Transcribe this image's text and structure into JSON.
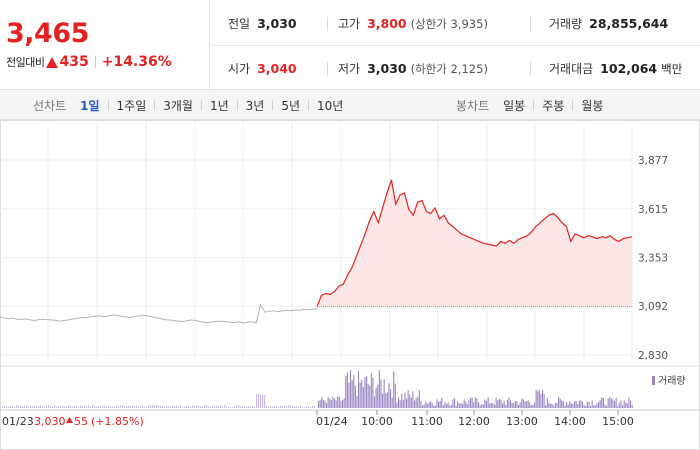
{
  "quote": {
    "price": "3,465",
    "change_label": "전일대비",
    "change_value": "435",
    "change_percent": "+14.36%",
    "prev_close_label": "전일",
    "prev_close": "3,030",
    "high_label": "고가",
    "high": "3,800",
    "upper_limit": "(상한가 3,935)",
    "volume_label": "거래량",
    "volume": "28,855,644",
    "open_label": "시가",
    "open": "3,040",
    "low_label": "저가",
    "low": "3,030",
    "lower_limit": "(하한가 2,125)",
    "trade_value_label": "거래대금",
    "trade_value": "102,064",
    "trade_value_unit": "백만"
  },
  "tabs": {
    "line_title": "선차트",
    "line_tabs": [
      "1일",
      "1주일",
      "3개월",
      "1년",
      "3년",
      "5년",
      "10년"
    ],
    "line_active": 0,
    "candle_title": "봉차트",
    "candle_tabs": [
      "일봉",
      "주봉",
      "월봉"
    ]
  },
  "colors": {
    "up": "#e52222",
    "line": "#e52222",
    "area": "#fde3e3",
    "prev_line": "#b5b5b5",
    "volume": "#9b86c4",
    "active_tab": "#2b56c7"
  },
  "chart_data": {
    "type": "line",
    "y_ticks": [
      "3,877",
      "3,615",
      "3,353",
      "3,092",
      "2,830"
    ],
    "y_tick_values": [
      3877,
      3615,
      3353,
      3092,
      2830
    ],
    "ylim": [
      2830,
      3877
    ],
    "prev_day": {
      "date": "01/23",
      "close": "3,030",
      "change": "55",
      "change_pct": "(+1.85%)"
    },
    "current_day": {
      "date": "01/24",
      "times": [
        "10:00",
        "11:00",
        "12:00",
        "13:00",
        "14:00",
        "15:00"
      ]
    },
    "volume_legend": "거래량",
    "series": [
      {
        "name": "01/23",
        "values": [
          3035,
          3030,
          3025,
          3028,
          3022,
          3020,
          3024,
          3018,
          3015,
          3020,
          3022,
          3019,
          3018,
          3015,
          3012,
          3016,
          3020,
          3025,
          3028,
          3032,
          3030,
          3035,
          3038,
          3040,
          3036,
          3040,
          3045,
          3042,
          3038,
          3035,
          3032,
          3036,
          3040,
          3044,
          3040,
          3036,
          3030,
          3025,
          3020,
          3018,
          3015,
          3012,
          3010,
          3014,
          3018,
          3015,
          3010,
          3006,
          3004,
          3008,
          3010,
          3012,
          3009,
          3006,
          3004,
          3008,
          3002,
          3005,
          3008,
          3002,
          3100,
          3060,
          3065,
          3068,
          3062,
          3066,
          3070,
          3068,
          3072,
          3070,
          3075,
          3072,
          3076,
          3078
        ]
      },
      {
        "name": "01/24",
        "values": [
          3090,
          3150,
          3160,
          3155,
          3170,
          3200,
          3210,
          3260,
          3300,
          3360,
          3420,
          3480,
          3550,
          3600,
          3540,
          3620,
          3700,
          3770,
          3640,
          3690,
          3700,
          3610,
          3580,
          3650,
          3660,
          3600,
          3590,
          3620,
          3560,
          3580,
          3540,
          3520,
          3500,
          3480,
          3470,
          3460,
          3450,
          3440,
          3430,
          3425,
          3420,
          3415,
          3440,
          3430,
          3445,
          3430,
          3450,
          3460,
          3470,
          3490,
          3520,
          3540,
          3560,
          3580,
          3590,
          3570,
          3540,
          3520,
          3440,
          3480,
          3470,
          3460,
          3470,
          3465,
          3455,
          3465,
          3460,
          3470,
          3450,
          3440,
          3455,
          3460,
          3465
        ]
      }
    ]
  }
}
